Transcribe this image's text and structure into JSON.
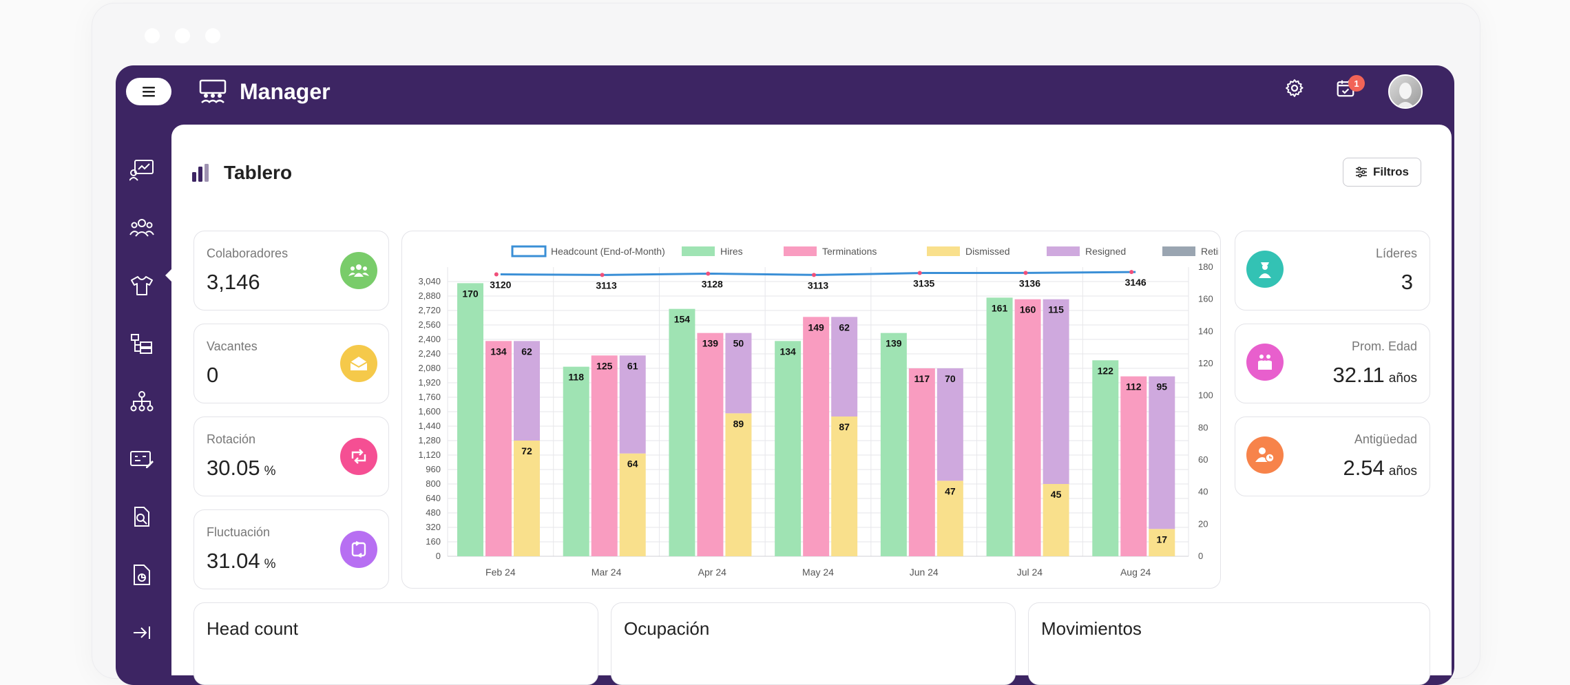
{
  "app": {
    "title": "Manager",
    "notifications": "1"
  },
  "page": {
    "title": "Tablero",
    "filter_label": "Filtros"
  },
  "kpis_left": [
    {
      "label": "Colaboradores",
      "value": "3,146",
      "unit": "",
      "color": "#79cc6a",
      "icon": "people-group-icon"
    },
    {
      "label": "Vacantes",
      "value": "0",
      "unit": "",
      "color": "#f5c94a",
      "icon": "envelope-open-icon"
    },
    {
      "label": "Rotación",
      "value": "30.05",
      "unit": "%",
      "color": "#f54f93",
      "icon": "rotate-arrows-icon"
    },
    {
      "label": "Fluctuación",
      "value": "31.04",
      "unit": "%",
      "color": "#b76ff2",
      "icon": "cycle-icon"
    }
  ],
  "kpis_right": [
    {
      "label": "Líderes",
      "value": "3",
      "unit": "",
      "color": "#33c2b4",
      "icon": "leader-icon"
    },
    {
      "label": "Prom. Edad",
      "value": "32.11",
      "unit": "años",
      "color": "#e85fcd",
      "icon": "family-icon"
    },
    {
      "label": "Antigüedad",
      "value": "2.54",
      "unit": "años",
      "color": "#f7834a",
      "icon": "user-clock-icon"
    }
  ],
  "bottom_cards": [
    "Head count",
    "Ocupación",
    "Movimientos"
  ],
  "colors": {
    "headcount": "#3a8fd6",
    "hires": "#9fe3b3",
    "terminations": "#f99cc0",
    "dismissed": "#f9e08c",
    "resigned": "#cfa9de",
    "retired": "#9aa5b1"
  },
  "chart_data": {
    "type": "bar",
    "categories": [
      "Feb 24",
      "Mar 24",
      "Apr 24",
      "May 24",
      "Jun 24",
      "Jul 24",
      "Aug 24"
    ],
    "legend": [
      "Headcount (End-of-Month)",
      "Hires",
      "Terminations",
      "Dismissed",
      "Resigned",
      "Retired"
    ],
    "series": [
      {
        "name": "Headcount (End-of-Month)",
        "type": "line",
        "axis": "left",
        "values": [
          3120,
          3113,
          3128,
          3113,
          3135,
          3136,
          3146
        ]
      },
      {
        "name": "Hires",
        "axis": "right",
        "values": [
          170,
          118,
          154,
          134,
          139,
          161,
          122
        ]
      },
      {
        "name": "Terminations",
        "axis": "right",
        "values": [
          134,
          125,
          139,
          149,
          117,
          160,
          112
        ]
      },
      {
        "name": "Dismissed",
        "axis": "right",
        "stack": "exits",
        "values": [
          72,
          64,
          89,
          87,
          47,
          45,
          17
        ]
      },
      {
        "name": "Resigned",
        "axis": "right",
        "stack": "exits",
        "values": [
          62,
          61,
          50,
          62,
          70,
          115,
          95
        ]
      },
      {
        "name": "Retired",
        "axis": "right",
        "stack": "exits",
        "values": [
          0,
          0,
          0,
          0,
          0,
          0,
          0
        ]
      }
    ],
    "left_ticks": [
      "0",
      "160",
      "320",
      "480",
      "640",
      "800",
      "960",
      "1,120",
      "1,280",
      "1,440",
      "1,600",
      "1,760",
      "1,920",
      "2,080",
      "2,240",
      "2,400",
      "2,560",
      "2,720",
      "2,880",
      "3,040"
    ],
    "right_ticks": [
      "0",
      "20",
      "40",
      "60",
      "80",
      "100",
      "120",
      "140",
      "160",
      "180"
    ],
    "ylim_left": [
      0,
      3200
    ],
    "ylim_right": [
      0,
      180
    ],
    "legend_position": "top",
    "grid": true
  }
}
